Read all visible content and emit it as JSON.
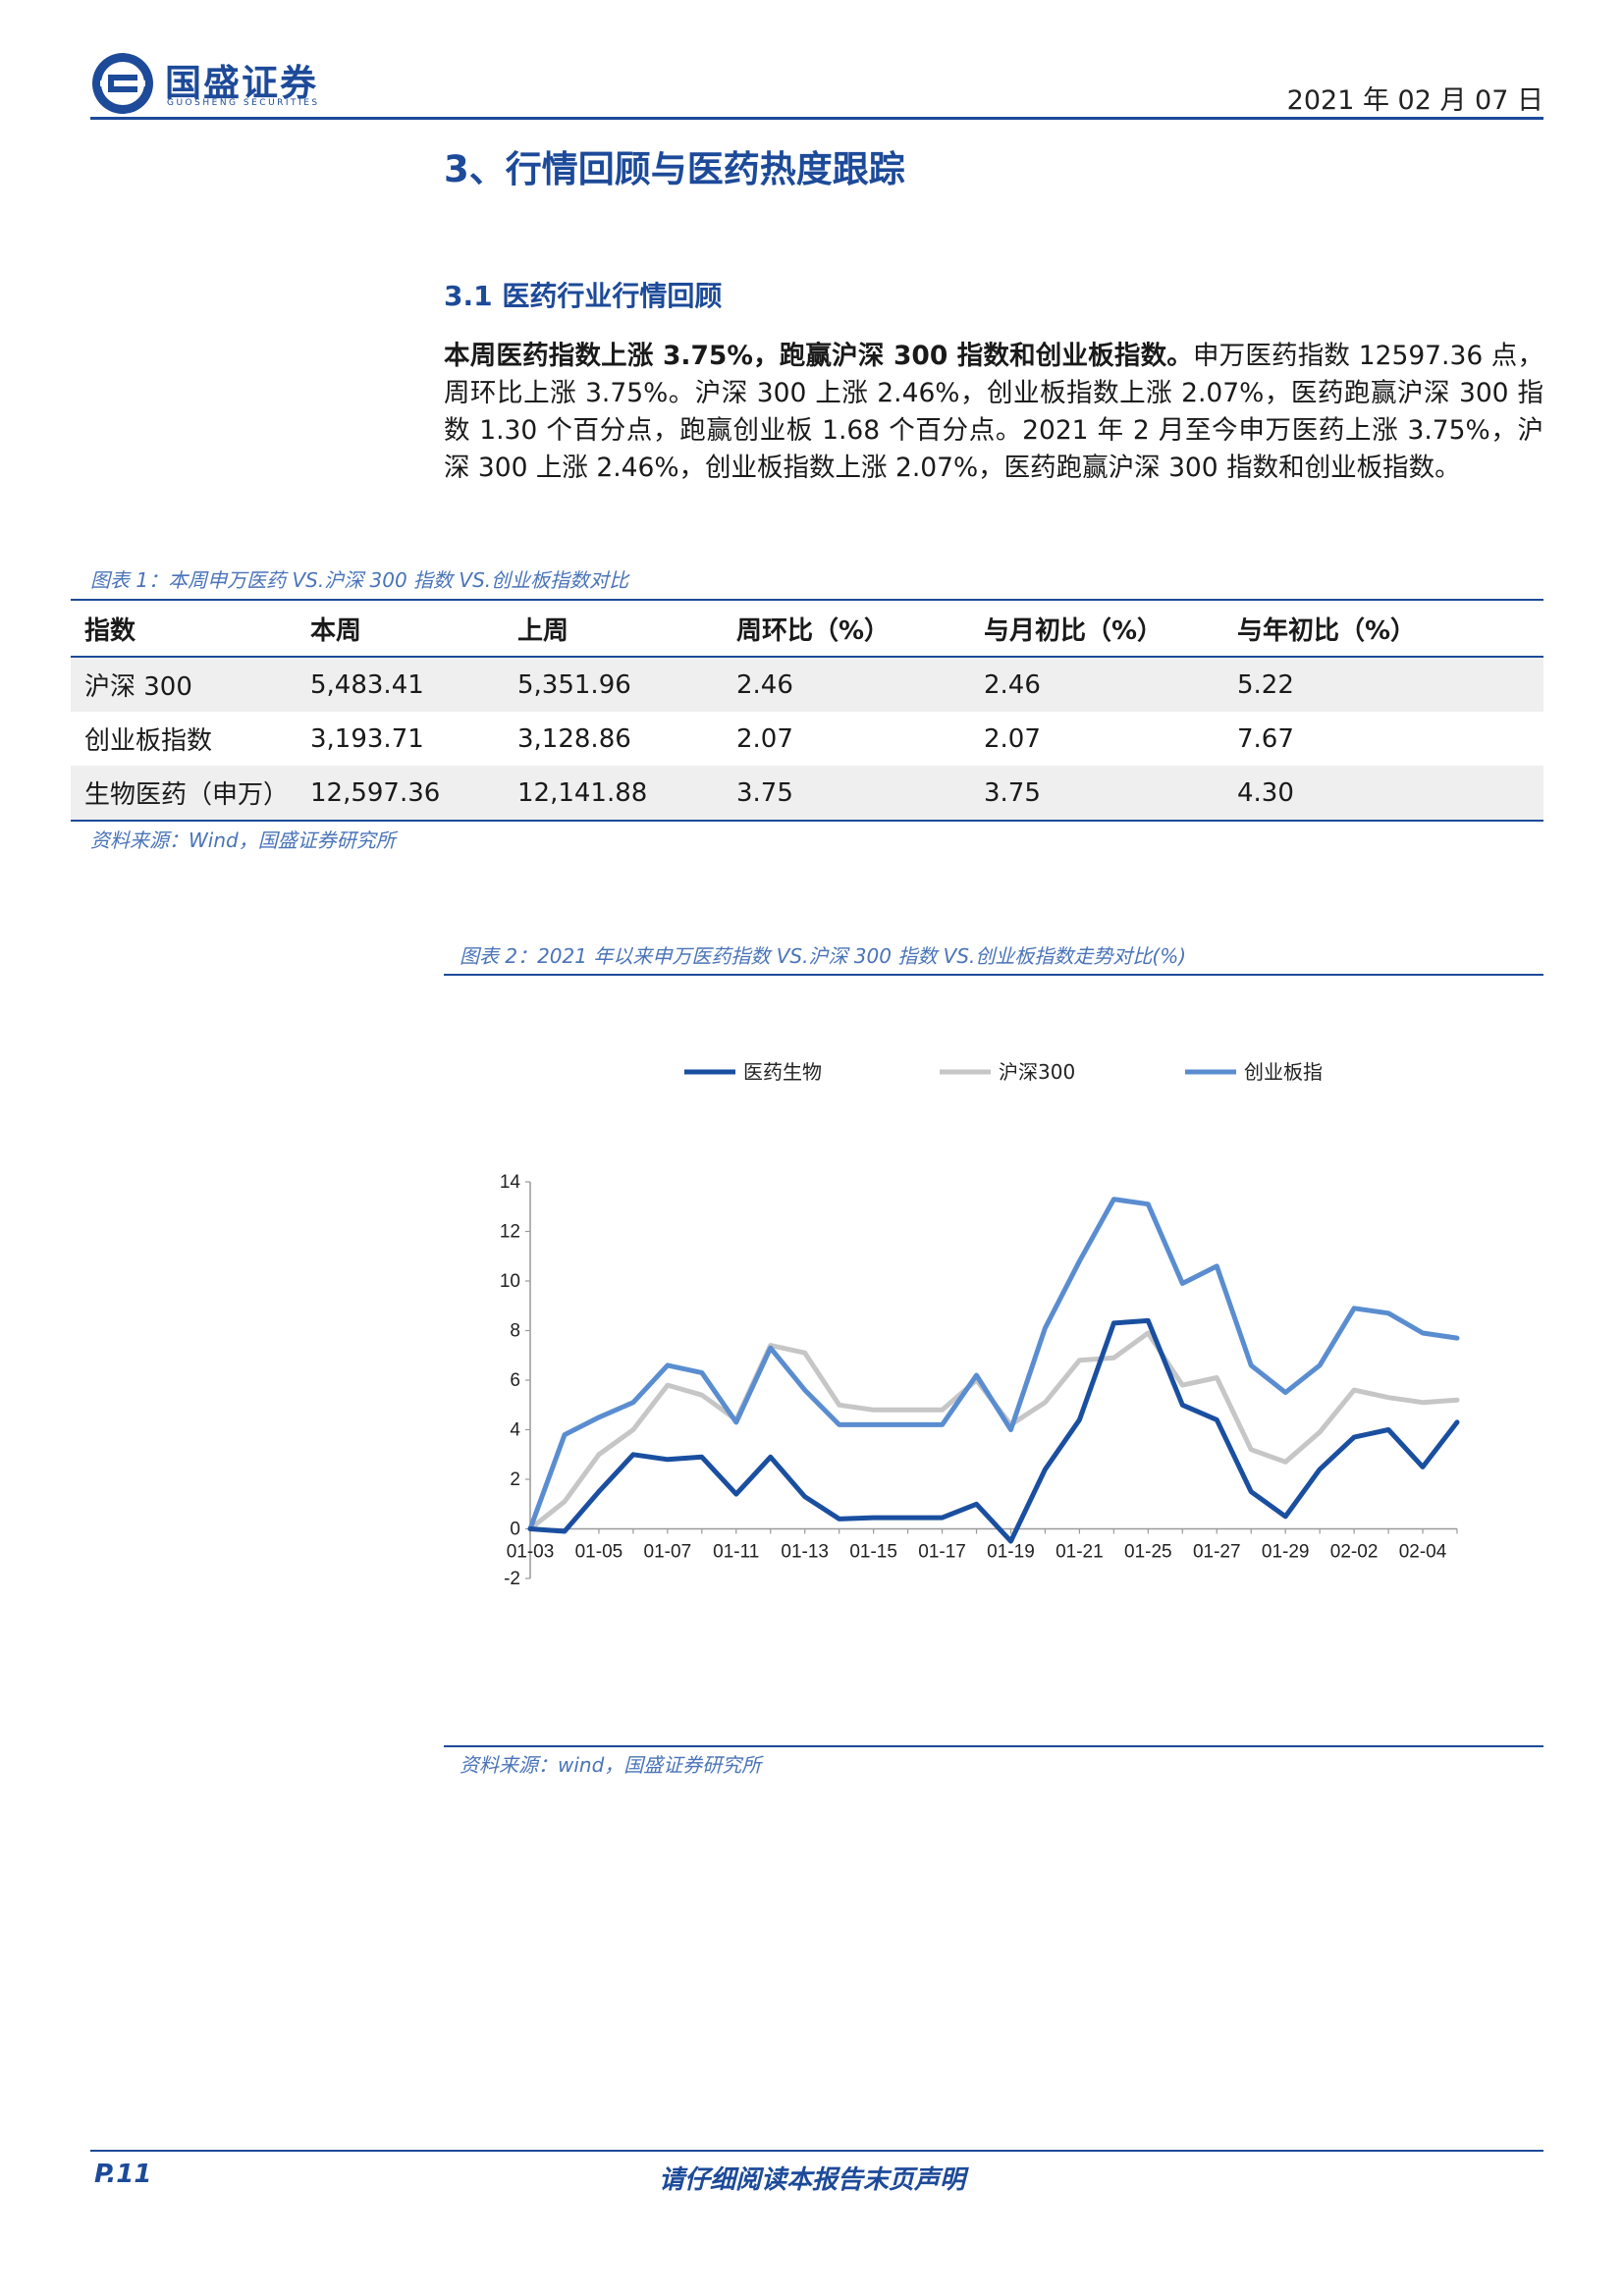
{
  "header": {
    "brand_cn": "国盛证券",
    "brand_en": "GUOSHENG SECURITIES",
    "date": "2021 年 02 月 07 日"
  },
  "section_title": "3、行情回顾与医药热度跟踪",
  "subsection_title": "3.1 医药行业行情回顾",
  "paragraph": {
    "lead": "本周医药指数上涨 3.75%，跑赢沪深 300 指数和创业板指数。",
    "body": "申万医药指数 12597.36 点，周环比上涨 3.75%。沪深 300 上涨 2.46%，创业板指数上涨 2.07%，医药跑赢沪深 300 指数 1.30 个百分点，跑赢创业板 1.68 个百分点。2021 年 2 月至今申万医药上涨 3.75%，沪深 300 上涨 2.46%，创业板指数上涨 2.07%，医药跑赢沪深 300 指数和创业板指数。"
  },
  "table1": {
    "caption": "图表 1：本周申万医药 VS.沪深 300 指数 VS.创业板指数对比",
    "headers": [
      "指数",
      "本周",
      "上周",
      "周环比（%）",
      "与月初比（%）",
      "与年初比（%）"
    ],
    "rows": [
      [
        "沪深 300",
        "5,483.41",
        "5,351.96",
        "2.46",
        "2.46",
        "5.22"
      ],
      [
        "创业板指数",
        "3,193.71",
        "3,128.86",
        "2.07",
        "2.07",
        "7.67"
      ],
      [
        "生物医药（申万）",
        "12,597.36",
        "12,141.88",
        "3.75",
        "3.75",
        "4.30"
      ]
    ],
    "source": "资料来源：Wind，国盛证券研究所"
  },
  "figure2": {
    "caption": "图表 2：2021 年以来申万医药指数 VS.沪深 300 指数 VS.创业板指数走势对比(%)",
    "source": "资料来源：wind，国盛证券研究所"
  },
  "chart_data": {
    "type": "line",
    "x": [
      "01-03",
      "01-04",
      "01-05",
      "01-06",
      "01-07",
      "01-08",
      "01-11",
      "01-12",
      "01-13",
      "01-14",
      "01-15",
      "01-16",
      "01-17",
      "01-18",
      "01-19",
      "01-20",
      "01-21",
      "01-22",
      "01-25",
      "01-26",
      "01-27",
      "01-28",
      "01-29",
      "02-01",
      "02-02",
      "02-03",
      "02-04",
      "02-05"
    ],
    "tick_labels": [
      "01-03",
      "01-05",
      "01-07",
      "01-11",
      "01-13",
      "01-15",
      "01-17",
      "01-19",
      "01-21",
      "01-25",
      "01-27",
      "01-29",
      "02-02",
      "02-04"
    ],
    "yticks": [
      -2,
      0,
      2,
      4,
      6,
      8,
      10,
      12,
      14
    ],
    "ylim": [
      -2,
      14
    ],
    "grid": false,
    "legend_position": "top",
    "series": [
      {
        "name": "医药生物",
        "color": "#1a4fa0",
        "values": [
          0,
          -0.1,
          1.5,
          3.0,
          2.8,
          2.9,
          1.4,
          2.9,
          1.3,
          0.4,
          0.45,
          0.45,
          0.45,
          1.0,
          -0.5,
          2.4,
          4.4,
          8.3,
          8.4,
          5.0,
          4.4,
          1.5,
          0.5,
          2.4,
          3.7,
          4.0,
          2.5,
          4.3
        ]
      },
      {
        "name": "沪深300",
        "color": "#c6c6c6",
        "values": [
          0,
          1.1,
          3.0,
          4.0,
          5.8,
          5.4,
          4.4,
          7.4,
          7.1,
          5.0,
          4.8,
          4.8,
          4.8,
          6.0,
          4.2,
          5.1,
          6.8,
          6.9,
          7.9,
          5.8,
          6.1,
          3.2,
          2.7,
          3.9,
          5.6,
          5.3,
          5.1,
          5.2
        ]
      },
      {
        "name": "创业板指",
        "color": "#5a8dd0",
        "values": [
          0,
          3.8,
          4.5,
          5.1,
          6.6,
          6.3,
          4.3,
          7.3,
          5.6,
          4.2,
          4.2,
          4.2,
          4.2,
          6.2,
          4.0,
          8.1,
          10.8,
          13.3,
          13.1,
          9.9,
          10.6,
          6.6,
          5.5,
          6.6,
          8.9,
          8.7,
          7.9,
          7.7
        ]
      }
    ]
  },
  "footer": {
    "page": "P.11",
    "disclaimer": "请仔细阅读本报告末页声明"
  }
}
